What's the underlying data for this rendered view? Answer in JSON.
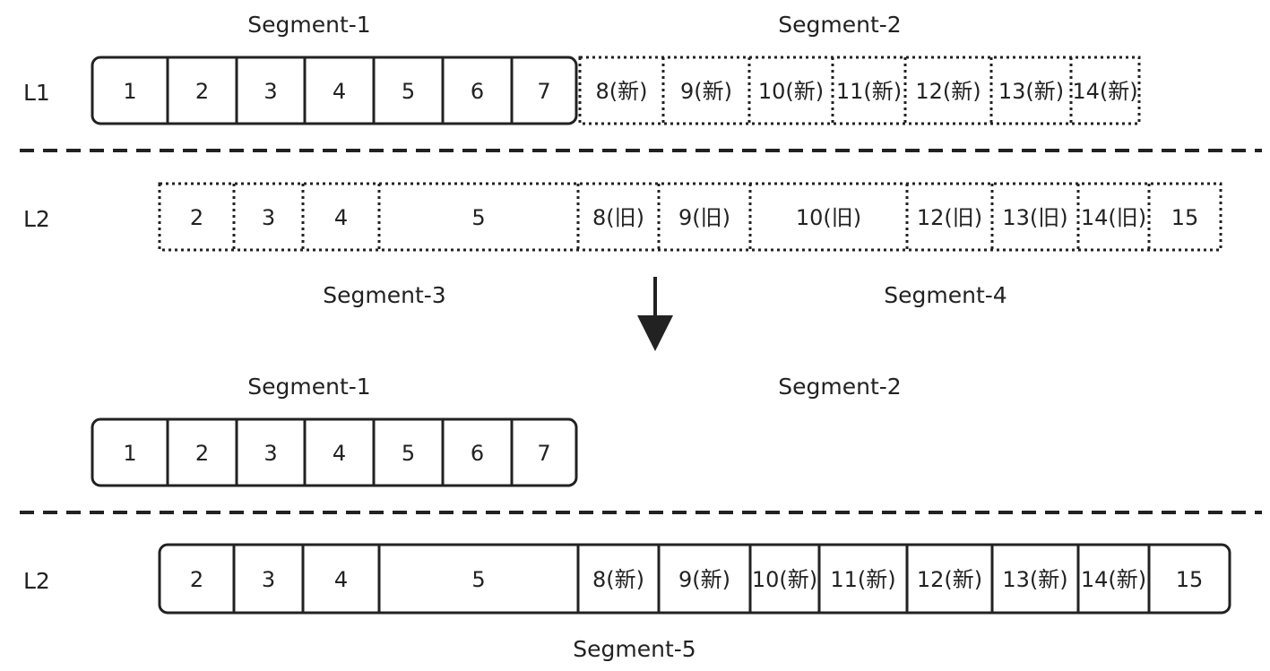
{
  "labels": {
    "seg1_top": "Segment-1",
    "seg2_top": "Segment-2",
    "seg3": "Segment-3",
    "seg4": "Segment-4",
    "seg1_bottom": "Segment-1",
    "seg2_bottom": "Segment-2",
    "seg5": "Segment-5"
  },
  "levels": {
    "l1_top": "L1",
    "l2_top": "L2",
    "l2_bottom": "L2"
  },
  "rows": {
    "top_l1_seg1": [
      "1",
      "2",
      "3",
      "4",
      "5",
      "6",
      "7"
    ],
    "top_l1_seg2": [
      "8(新)",
      "9(新)",
      "10(新)",
      "11(新)",
      "12(新)",
      "13(新)",
      "14(新)"
    ],
    "top_l2": [
      "2",
      "3",
      "4",
      "5",
      "8(旧)",
      "9(旧)",
      "10(旧)",
      "12(旧)",
      "13(旧)",
      "14(旧)",
      "15"
    ],
    "bottom_l1": [
      "1",
      "2",
      "3",
      "4",
      "5",
      "6",
      "7"
    ],
    "bottom_l2": [
      "2",
      "3",
      "4",
      "5",
      "8(新)",
      "9(新)",
      "10(新)",
      "11(新)",
      "12(新)",
      "13(新)",
      "14(新)",
      "15"
    ]
  }
}
